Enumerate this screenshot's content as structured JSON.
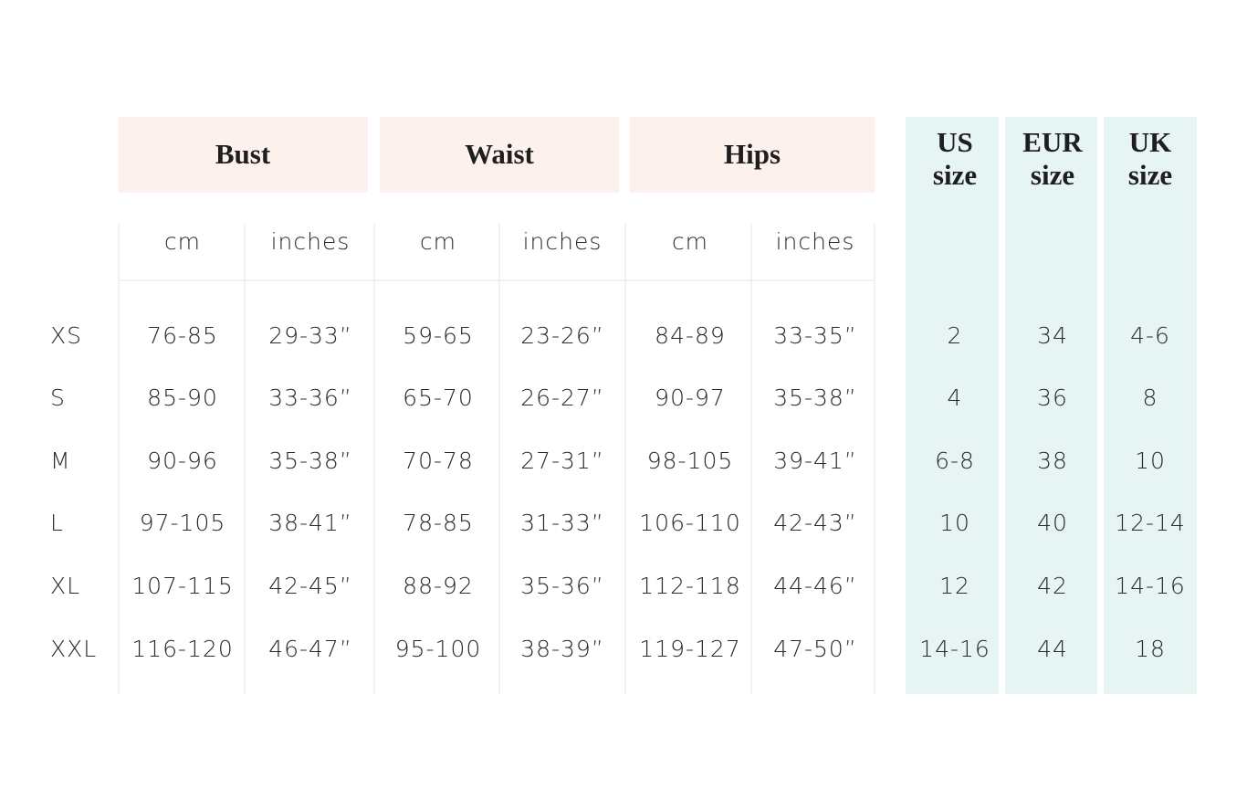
{
  "table": {
    "groups": [
      "Bust",
      "Waist",
      "Hips"
    ],
    "units": [
      "cm",
      "inches",
      "cm",
      "inches",
      "cm",
      "inches"
    ],
    "systems": [
      [
        "US",
        "size"
      ],
      [
        "EUR",
        "size"
      ],
      [
        "UK",
        "size"
      ]
    ],
    "rows": [
      {
        "size": "XS",
        "cells": [
          "76-85",
          "29-33”",
          "59-65",
          "23-26”",
          "84-89",
          "33-35”"
        ],
        "systems": [
          "2",
          "34",
          "4-6"
        ]
      },
      {
        "size": "S",
        "cells": [
          "85-90",
          "33-36”",
          "65-70",
          "26-27”",
          "90-97",
          "35-38”"
        ],
        "systems": [
          "4",
          "36",
          "8"
        ]
      },
      {
        "size": "M",
        "cells": [
          "90-96",
          "35-38”",
          "70-78",
          "27-31”",
          "98-105",
          "39-41”"
        ],
        "systems": [
          "6-8",
          "38",
          "10"
        ]
      },
      {
        "size": "L",
        "cells": [
          "97-105",
          "38-41”",
          "78-85",
          "31-33”",
          "106-110",
          "42-43”"
        ],
        "systems": [
          "10",
          "40",
          "12-14"
        ]
      },
      {
        "size": "XL",
        "cells": [
          "107-115",
          "42-45”",
          "88-92",
          "35-36”",
          "112-118",
          "44-46”"
        ],
        "systems": [
          "12",
          "42",
          "14-16"
        ]
      },
      {
        "size": "XXL",
        "cells": [
          "116-120",
          "46-47”",
          "95-100",
          "38-39”",
          "119-127",
          "47-50”"
        ],
        "systems": [
          "14-16",
          "44",
          "18"
        ]
      }
    ]
  }
}
